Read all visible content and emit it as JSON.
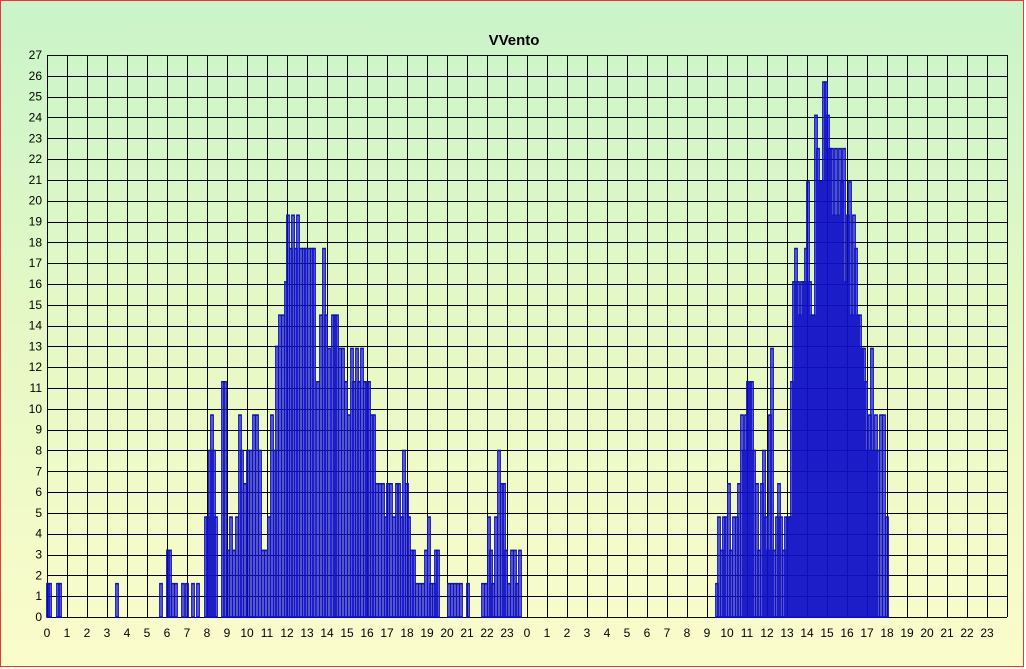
{
  "chart_data": {
    "type": "bar",
    "title": "VVento",
    "xlabel": "",
    "ylabel": "",
    "ylim": [
      0,
      27
    ],
    "y_ticks": [
      "0",
      "1",
      "2",
      "3",
      "4",
      "5",
      "6",
      "7",
      "8",
      "9",
      "10",
      "11",
      "12",
      "13",
      "14",
      "15",
      "16",
      "17",
      "18",
      "19",
      "20",
      "21",
      "22",
      "23",
      "24",
      "25",
      "26",
      "27"
    ],
    "x_tick_labels": [
      "0",
      "1",
      "2",
      "3",
      "4",
      "5",
      "6",
      "7",
      "8",
      "9",
      "10",
      "11",
      "12",
      "13",
      "14",
      "15",
      "16",
      "17",
      "18",
      "19",
      "20",
      "21",
      "22",
      "23",
      "0",
      "1",
      "2",
      "3",
      "4",
      "5",
      "6",
      "7",
      "8",
      "9",
      "10",
      "11",
      "12",
      "13",
      "14",
      "15",
      "16",
      "17",
      "18",
      "19",
      "20",
      "21",
      "22",
      "23"
    ],
    "x_unit": "hour (two consecutive days)",
    "grid": true,
    "legend": "none",
    "series_color": "#1010c8",
    "values": [
      {
        "x": 0.05,
        "y": 1.6
      },
      {
        "x": 0.15,
        "y": 1.6
      },
      {
        "x": 0.55,
        "y": 1.6
      },
      {
        "x": 0.65,
        "y": 1.6
      },
      {
        "x": 3.5,
        "y": 1.6
      },
      {
        "x": 5.7,
        "y": 1.6
      },
      {
        "x": 6.05,
        "y": 3.2
      },
      {
        "x": 6.15,
        "y": 3.2
      },
      {
        "x": 6.3,
        "y": 1.6
      },
      {
        "x": 6.45,
        "y": 1.6
      },
      {
        "x": 6.8,
        "y": 1.6
      },
      {
        "x": 7.0,
        "y": 1.6
      },
      {
        "x": 7.3,
        "y": 1.6
      },
      {
        "x": 7.55,
        "y": 1.6
      },
      {
        "x": 7.95,
        "y": 4.8
      },
      {
        "x": 8.05,
        "y": 4.8
      },
      {
        "x": 8.15,
        "y": 8.0
      },
      {
        "x": 8.25,
        "y": 9.7
      },
      {
        "x": 8.35,
        "y": 8.0
      },
      {
        "x": 8.45,
        "y": 4.8
      },
      {
        "x": 8.8,
        "y": 11.3
      },
      {
        "x": 8.9,
        "y": 11.3
      },
      {
        "x": 9.05,
        "y": 3.2
      },
      {
        "x": 9.2,
        "y": 4.8
      },
      {
        "x": 9.35,
        "y": 3.2
      },
      {
        "x": 9.5,
        "y": 4.8
      },
      {
        "x": 9.65,
        "y": 9.7
      },
      {
        "x": 9.75,
        "y": 8.0
      },
      {
        "x": 9.9,
        "y": 6.4
      },
      {
        "x": 10.05,
        "y": 8.0
      },
      {
        "x": 10.2,
        "y": 8.0
      },
      {
        "x": 10.35,
        "y": 9.7
      },
      {
        "x": 10.5,
        "y": 9.7
      },
      {
        "x": 10.65,
        "y": 8.0
      },
      {
        "x": 10.8,
        "y": 3.2
      },
      {
        "x": 10.95,
        "y": 3.2
      },
      {
        "x": 11.1,
        "y": 4.8
      },
      {
        "x": 11.25,
        "y": 9.7
      },
      {
        "x": 11.4,
        "y": 8.0
      },
      {
        "x": 11.5,
        "y": 13.0
      },
      {
        "x": 11.65,
        "y": 14.5
      },
      {
        "x": 11.8,
        "y": 14.5
      },
      {
        "x": 11.95,
        "y": 16.1
      },
      {
        "x": 12.05,
        "y": 19.3
      },
      {
        "x": 12.2,
        "y": 17.7
      },
      {
        "x": 12.3,
        "y": 19.3
      },
      {
        "x": 12.45,
        "y": 17.7
      },
      {
        "x": 12.55,
        "y": 19.3
      },
      {
        "x": 12.7,
        "y": 17.7
      },
      {
        "x": 12.85,
        "y": 17.7
      },
      {
        "x": 12.95,
        "y": 17.7
      },
      {
        "x": 13.1,
        "y": 17.7
      },
      {
        "x": 13.25,
        "y": 17.7
      },
      {
        "x": 13.35,
        "y": 17.7
      },
      {
        "x": 13.55,
        "y": 11.3
      },
      {
        "x": 13.7,
        "y": 14.5
      },
      {
        "x": 13.85,
        "y": 17.7
      },
      {
        "x": 13.95,
        "y": 14.5
      },
      {
        "x": 14.1,
        "y": 12.9
      },
      {
        "x": 14.3,
        "y": 14.5
      },
      {
        "x": 14.4,
        "y": 14.5
      },
      {
        "x": 14.5,
        "y": 14.5
      },
      {
        "x": 14.65,
        "y": 12.9
      },
      {
        "x": 14.8,
        "y": 12.9
      },
      {
        "x": 14.95,
        "y": 11.3
      },
      {
        "x": 15.1,
        "y": 9.7
      },
      {
        "x": 15.25,
        "y": 12.9
      },
      {
        "x": 15.35,
        "y": 11.3
      },
      {
        "x": 15.5,
        "y": 12.9
      },
      {
        "x": 15.6,
        "y": 11.3
      },
      {
        "x": 15.75,
        "y": 12.9
      },
      {
        "x": 15.9,
        "y": 11.3
      },
      {
        "x": 16.0,
        "y": 11.3
      },
      {
        "x": 16.1,
        "y": 11.3
      },
      {
        "x": 16.25,
        "y": 9.7
      },
      {
        "x": 16.35,
        "y": 9.7
      },
      {
        "x": 16.5,
        "y": 6.4
      },
      {
        "x": 16.65,
        "y": 6.4
      },
      {
        "x": 16.8,
        "y": 6.4
      },
      {
        "x": 16.95,
        "y": 4.8
      },
      {
        "x": 17.05,
        "y": 6.4
      },
      {
        "x": 17.2,
        "y": 6.4
      },
      {
        "x": 17.35,
        "y": 4.8
      },
      {
        "x": 17.5,
        "y": 6.4
      },
      {
        "x": 17.6,
        "y": 6.4
      },
      {
        "x": 17.75,
        "y": 4.8
      },
      {
        "x": 17.85,
        "y": 8.0
      },
      {
        "x": 18.0,
        "y": 6.4
      },
      {
        "x": 18.1,
        "y": 4.8
      },
      {
        "x": 18.25,
        "y": 3.2
      },
      {
        "x": 18.35,
        "y": 3.2
      },
      {
        "x": 18.5,
        "y": 1.6
      },
      {
        "x": 18.65,
        "y": 1.6
      },
      {
        "x": 18.8,
        "y": 1.6
      },
      {
        "x": 18.95,
        "y": 3.2
      },
      {
        "x": 19.1,
        "y": 4.8
      },
      {
        "x": 19.2,
        "y": 1.6
      },
      {
        "x": 19.35,
        "y": 1.6
      },
      {
        "x": 19.45,
        "y": 3.2
      },
      {
        "x": 19.55,
        "y": 3.2
      },
      {
        "x": 20.1,
        "y": 1.6
      },
      {
        "x": 20.25,
        "y": 1.6
      },
      {
        "x": 20.4,
        "y": 1.6
      },
      {
        "x": 20.55,
        "y": 1.6
      },
      {
        "x": 20.7,
        "y": 1.6
      },
      {
        "x": 21.05,
        "y": 1.6
      },
      {
        "x": 21.8,
        "y": 1.6
      },
      {
        "x": 21.95,
        "y": 1.6
      },
      {
        "x": 22.1,
        "y": 4.8
      },
      {
        "x": 22.2,
        "y": 3.2
      },
      {
        "x": 22.3,
        "y": 1.6
      },
      {
        "x": 22.45,
        "y": 4.8
      },
      {
        "x": 22.6,
        "y": 8.0
      },
      {
        "x": 22.75,
        "y": 6.4
      },
      {
        "x": 22.85,
        "y": 6.4
      },
      {
        "x": 22.95,
        "y": 3.2
      },
      {
        "x": 23.1,
        "y": 1.6
      },
      {
        "x": 23.25,
        "y": 3.2
      },
      {
        "x": 23.4,
        "y": 3.2
      },
      {
        "x": 23.5,
        "y": 1.6
      },
      {
        "x": 23.65,
        "y": 3.2
      },
      {
        "x": 33.5,
        "y": 1.6
      },
      {
        "x": 33.6,
        "y": 4.8
      },
      {
        "x": 33.75,
        "y": 3.2
      },
      {
        "x": 33.85,
        "y": 4.8
      },
      {
        "x": 33.95,
        "y": 4.8
      },
      {
        "x": 34.1,
        "y": 6.4
      },
      {
        "x": 34.2,
        "y": 3.2
      },
      {
        "x": 34.35,
        "y": 4.8
      },
      {
        "x": 34.5,
        "y": 4.8
      },
      {
        "x": 34.6,
        "y": 6.4
      },
      {
        "x": 34.75,
        "y": 9.7
      },
      {
        "x": 34.85,
        "y": 8.0
      },
      {
        "x": 34.95,
        "y": 9.7
      },
      {
        "x": 35.05,
        "y": 11.3
      },
      {
        "x": 35.15,
        "y": 11.3
      },
      {
        "x": 35.25,
        "y": 11.3
      },
      {
        "x": 35.35,
        "y": 8.0
      },
      {
        "x": 35.5,
        "y": 6.4
      },
      {
        "x": 35.6,
        "y": 3.2
      },
      {
        "x": 35.75,
        "y": 6.4
      },
      {
        "x": 35.85,
        "y": 8.0
      },
      {
        "x": 35.95,
        "y": 4.8
      },
      {
        "x": 36.05,
        "y": 3.2
      },
      {
        "x": 36.15,
        "y": 9.7
      },
      {
        "x": 36.25,
        "y": 12.9
      },
      {
        "x": 36.35,
        "y": 3.2
      },
      {
        "x": 36.5,
        "y": 4.8
      },
      {
        "x": 36.6,
        "y": 6.4
      },
      {
        "x": 36.7,
        "y": 4.8
      },
      {
        "x": 36.85,
        "y": 3.2
      },
      {
        "x": 36.95,
        "y": 4.8
      },
      {
        "x": 37.05,
        "y": 4.8
      },
      {
        "x": 37.15,
        "y": 4.8
      },
      {
        "x": 37.25,
        "y": 11.3
      },
      {
        "x": 37.35,
        "y": 16.1
      },
      {
        "x": 37.45,
        "y": 17.7
      },
      {
        "x": 37.55,
        "y": 16.1
      },
      {
        "x": 37.65,
        "y": 14.5
      },
      {
        "x": 37.75,
        "y": 16.1
      },
      {
        "x": 37.85,
        "y": 16.1
      },
      {
        "x": 37.95,
        "y": 17.7
      },
      {
        "x": 38.05,
        "y": 20.9
      },
      {
        "x": 38.15,
        "y": 16.1
      },
      {
        "x": 38.25,
        "y": 14.5
      },
      {
        "x": 38.35,
        "y": 14.5
      },
      {
        "x": 38.45,
        "y": 24.1
      },
      {
        "x": 38.55,
        "y": 22.5
      },
      {
        "x": 38.65,
        "y": 20.9
      },
      {
        "x": 38.75,
        "y": 20.9
      },
      {
        "x": 38.85,
        "y": 25.7
      },
      {
        "x": 38.95,
        "y": 25.7
      },
      {
        "x": 39.05,
        "y": 24.1
      },
      {
        "x": 39.15,
        "y": 22.5
      },
      {
        "x": 39.25,
        "y": 22.5
      },
      {
        "x": 39.35,
        "y": 19.3
      },
      {
        "x": 39.45,
        "y": 22.5
      },
      {
        "x": 39.55,
        "y": 19.3
      },
      {
        "x": 39.65,
        "y": 22.5
      },
      {
        "x": 39.75,
        "y": 20.9
      },
      {
        "x": 39.85,
        "y": 22.5
      },
      {
        "x": 39.95,
        "y": 16.1
      },
      {
        "x": 40.05,
        "y": 19.3
      },
      {
        "x": 40.15,
        "y": 20.9
      },
      {
        "x": 40.25,
        "y": 14.5
      },
      {
        "x": 40.35,
        "y": 19.3
      },
      {
        "x": 40.45,
        "y": 17.7
      },
      {
        "x": 40.55,
        "y": 14.5
      },
      {
        "x": 40.65,
        "y": 14.5
      },
      {
        "x": 40.75,
        "y": 12.9
      },
      {
        "x": 40.85,
        "y": 12.9
      },
      {
        "x": 40.95,
        "y": 11.3
      },
      {
        "x": 41.05,
        "y": 8.0
      },
      {
        "x": 41.15,
        "y": 9.7
      },
      {
        "x": 41.25,
        "y": 12.9
      },
      {
        "x": 41.35,
        "y": 8.0
      },
      {
        "x": 41.45,
        "y": 9.7
      },
      {
        "x": 41.55,
        "y": 8.0
      },
      {
        "x": 41.7,
        "y": 9.7
      },
      {
        "x": 41.85,
        "y": 9.7
      },
      {
        "x": 42.0,
        "y": 4.8
      }
    ]
  }
}
